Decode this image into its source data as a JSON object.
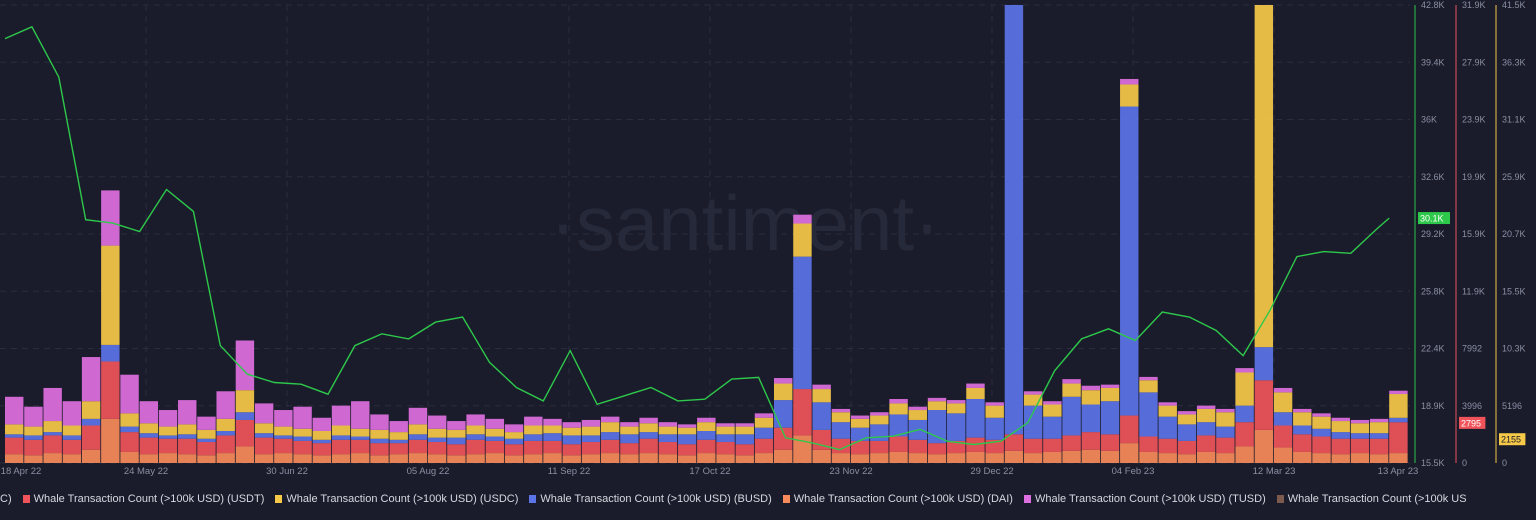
{
  "watermark": "·santiment·",
  "colors": {
    "background": "#1a1c2b",
    "price": "#2ec84a",
    "usdt": "#f0545a",
    "usdc": "#f7c948",
    "busd": "#5b74e8",
    "dai": "#f98a5a",
    "tusd": "#de6fe0",
    "other": "#7d5a4e"
  },
  "chart_data": {
    "type": "bar+line",
    "x_tick_labels": [
      "18 Apr 22",
      "24 May 22",
      "30 Jun 22",
      "05 Aug 22",
      "11 Sep 22",
      "17 Oct 22",
      "23 Nov 22",
      "29 Dec 22",
      "04 Feb 23",
      "12 Mar 23",
      "13 Apr 23"
    ],
    "x_range": [
      "18 Apr 22",
      "13 Apr 23"
    ],
    "grid": true,
    "legend_placement": "bottom",
    "axes": [
      {
        "id": "price",
        "color": "#2ec84a",
        "ticks": [
          "42.8K",
          "39.4K",
          "36K",
          "32.6K",
          "29.2K",
          "25.8K",
          "22.4K",
          "18.9K",
          "15.5K"
        ],
        "range": [
          15500,
          42800
        ],
        "last_value_label": "30.1K",
        "last_value": 30100
      },
      {
        "id": "usdt",
        "color": "#f0545a",
        "ticks": [
          "31.9K",
          "27.9K",
          "23.9K",
          "19.9K",
          "15.9K",
          "11.9K",
          "7992",
          "3996",
          "0"
        ],
        "range": [
          0,
          31900
        ],
        "last_value_label": "2795",
        "last_value": 2795
      },
      {
        "id": "usdc",
        "color": "#f7c948",
        "ticks": [
          "41.5K",
          "36.3K",
          "31.1K",
          "25.9K",
          "20.7K",
          "15.5K",
          "10.3K",
          "5196",
          "0"
        ],
        "range": [
          0,
          41500
        ],
        "last_value_label": "2155",
        "last_value": 2155
      }
    ],
    "line_series": {
      "name": "(BTC)",
      "legend_label": "C)",
      "dates": [
        "2022-04-18",
        "2022-04-25",
        "2022-05-02",
        "2022-05-09",
        "2022-05-16",
        "2022-05-23",
        "2022-05-30",
        "2022-06-06",
        "2022-06-13",
        "2022-06-20",
        "2022-06-27",
        "2022-07-04",
        "2022-07-11",
        "2022-07-18",
        "2022-07-25",
        "2022-08-01",
        "2022-08-08",
        "2022-08-15",
        "2022-08-22",
        "2022-08-29",
        "2022-09-05",
        "2022-09-12",
        "2022-09-19",
        "2022-09-26",
        "2022-10-03",
        "2022-10-10",
        "2022-10-17",
        "2022-10-24",
        "2022-10-31",
        "2022-11-07",
        "2022-11-14",
        "2022-11-21",
        "2022-11-28",
        "2022-12-05",
        "2022-12-12",
        "2022-12-19",
        "2022-12-26",
        "2023-01-02",
        "2023-01-09",
        "2023-01-16",
        "2023-01-23",
        "2023-01-30",
        "2023-02-06",
        "2023-02-13",
        "2023-02-20",
        "2023-02-27",
        "2023-03-06",
        "2023-03-13",
        "2023-03-20",
        "2023-03-27",
        "2023-04-03",
        "2023-04-10",
        "2023-04-13"
      ],
      "values": [
        40800,
        41500,
        38500,
        30000,
        29800,
        29300,
        31800,
        30500,
        22500,
        20800,
        20300,
        20200,
        19600,
        22500,
        23200,
        22900,
        23900,
        24200,
        21500,
        20000,
        19200,
        22200,
        19000,
        19500,
        20000,
        19200,
        19300,
        20500,
        20600,
        17000,
        16700,
        16300,
        17000,
        17100,
        17500,
        16800,
        16600,
        16800,
        17900,
        21000,
        22900,
        23500,
        22800,
        24500,
        24200,
        23400,
        21900,
        24600,
        27800,
        28100,
        28000,
        29500,
        30100
      ]
    },
    "bar_series_start": "2022-04-18",
    "bar_interval_days": 5,
    "bar_series": [
      {
        "name": "Whale Transaction Count (>100k USD) (USDT)",
        "color": "#f0545a",
        "values": [
          1500,
          1400,
          1600,
          1300,
          2200,
          5200,
          1800,
          1500,
          1300,
          1400,
          1200,
          1600,
          2400,
          1500,
          1300,
          1200,
          1100,
          1300,
          1200,
          1100,
          1000,
          1200,
          1100,
          1000,
          1300,
          1100,
          1000,
          1200,
          1100,
          1000,
          1100,
          1200,
          1000,
          1300,
          1100,
          1000,
          1200,
          1100,
          1000,
          1300,
          2000,
          4200,
          1800,
          1300,
          1200,
          1100,
          1400,
          1200,
          1000,
          1100,
          1300,
          1200,
          1500,
          1300,
          1200,
          1400,
          1600,
          1500,
          2500,
          1400,
          1300,
          1200,
          1500,
          1400,
          2200,
          4500,
          2000,
          1600,
          1500,
          1400,
          1300,
          1400,
          2795
        ]
      },
      {
        "name": "Whale Transaction Count (>100k USD) (USDC)",
        "color": "#f7c948",
        "values": [
          900,
          800,
          1000,
          900,
          1600,
          9000,
          1200,
          900,
          800,
          900,
          800,
          1100,
          2000,
          900,
          800,
          700,
          800,
          900,
          700,
          800,
          700,
          900,
          800,
          700,
          800,
          700,
          600,
          800,
          700,
          700,
          800,
          900,
          700,
          800,
          700,
          600,
          800,
          700,
          700,
          900,
          1500,
          3000,
          1200,
          900,
          800,
          800,
          1000,
          900,
          800,
          900,
          1000,
          1100,
          1200,
          1000,
          1100,
          1200,
          1300,
          1200,
          2000,
          1100,
          1000,
          900,
          1200,
          1300,
          3000,
          36000,
          1800,
          1200,
          1100,
          1000,
          900,
          1000,
          2155
        ]
      },
      {
        "name": "Whale Transaction Count (>100k USD) (BUSD)",
        "color": "#5b74e8",
        "values": [
          300,
          400,
          300,
          400,
          600,
          1500,
          500,
          400,
          300,
          400,
          300,
          400,
          700,
          400,
          300,
          400,
          300,
          400,
          300,
          400,
          300,
          500,
          400,
          600,
          500,
          400,
          500,
          600,
          700,
          800,
          600,
          700,
          800,
          600,
          700,
          900,
          800,
          700,
          900,
          1000,
          2500,
          12000,
          2500,
          1500,
          1200,
          1500,
          2000,
          1800,
          3000,
          2500,
          3500,
          2000,
          40000,
          3000,
          2000,
          3500,
          2500,
          3000,
          28000,
          4000,
          2000,
          1500,
          1200,
          1000,
          1500,
          3000,
          1200,
          800,
          700,
          600,
          500,
          500,
          400
        ]
      },
      {
        "name": "Whale Transaction Count (>100k USD) (DAI)",
        "color": "#f98a5a",
        "values": [
          800,
          700,
          900,
          800,
          1200,
          4000,
          1000,
          800,
          900,
          800,
          700,
          900,
          1500,
          800,
          900,
          800,
          700,
          800,
          900,
          700,
          800,
          900,
          800,
          700,
          800,
          900,
          700,
          800,
          900,
          700,
          800,
          900,
          800,
          900,
          800,
          700,
          900,
          800,
          700,
          900,
          1200,
          2500,
          1200,
          900,
          800,
          900,
          1000,
          900,
          800,
          900,
          1000,
          900,
          1100,
          900,
          1000,
          1100,
          1200,
          1100,
          1800,
          1000,
          900,
          800,
          1000,
          900,
          1500,
          3000,
          1400,
          1000,
          900,
          800,
          900,
          800,
          900
        ]
      },
      {
        "name": "Whale Transaction Count (>100k USD) (TUSD)",
        "color": "#de6fe0",
        "values": [
          2500,
          1800,
          3000,
          2200,
          4000,
          5000,
          3500,
          2000,
          1500,
          2200,
          1200,
          2500,
          4500,
          1800,
          1500,
          2000,
          1200,
          1800,
          2500,
          1400,
          1000,
          1500,
          1200,
          800,
          1000,
          900,
          700,
          800,
          600,
          500,
          600,
          500,
          400,
          500,
          400,
          300,
          400,
          300,
          300,
          400,
          500,
          800,
          400,
          300,
          300,
          300,
          400,
          300,
          300,
          300,
          400,
          300,
          400,
          300,
          300,
          400,
          400,
          300,
          500,
          300,
          300,
          300,
          300,
          300,
          400,
          600,
          400,
          300,
          300,
          300,
          300,
          300,
          300
        ]
      },
      {
        "name": "Whale Transaction Count (>100k US",
        "color": "#7d5a4e",
        "values": []
      }
    ]
  }
}
